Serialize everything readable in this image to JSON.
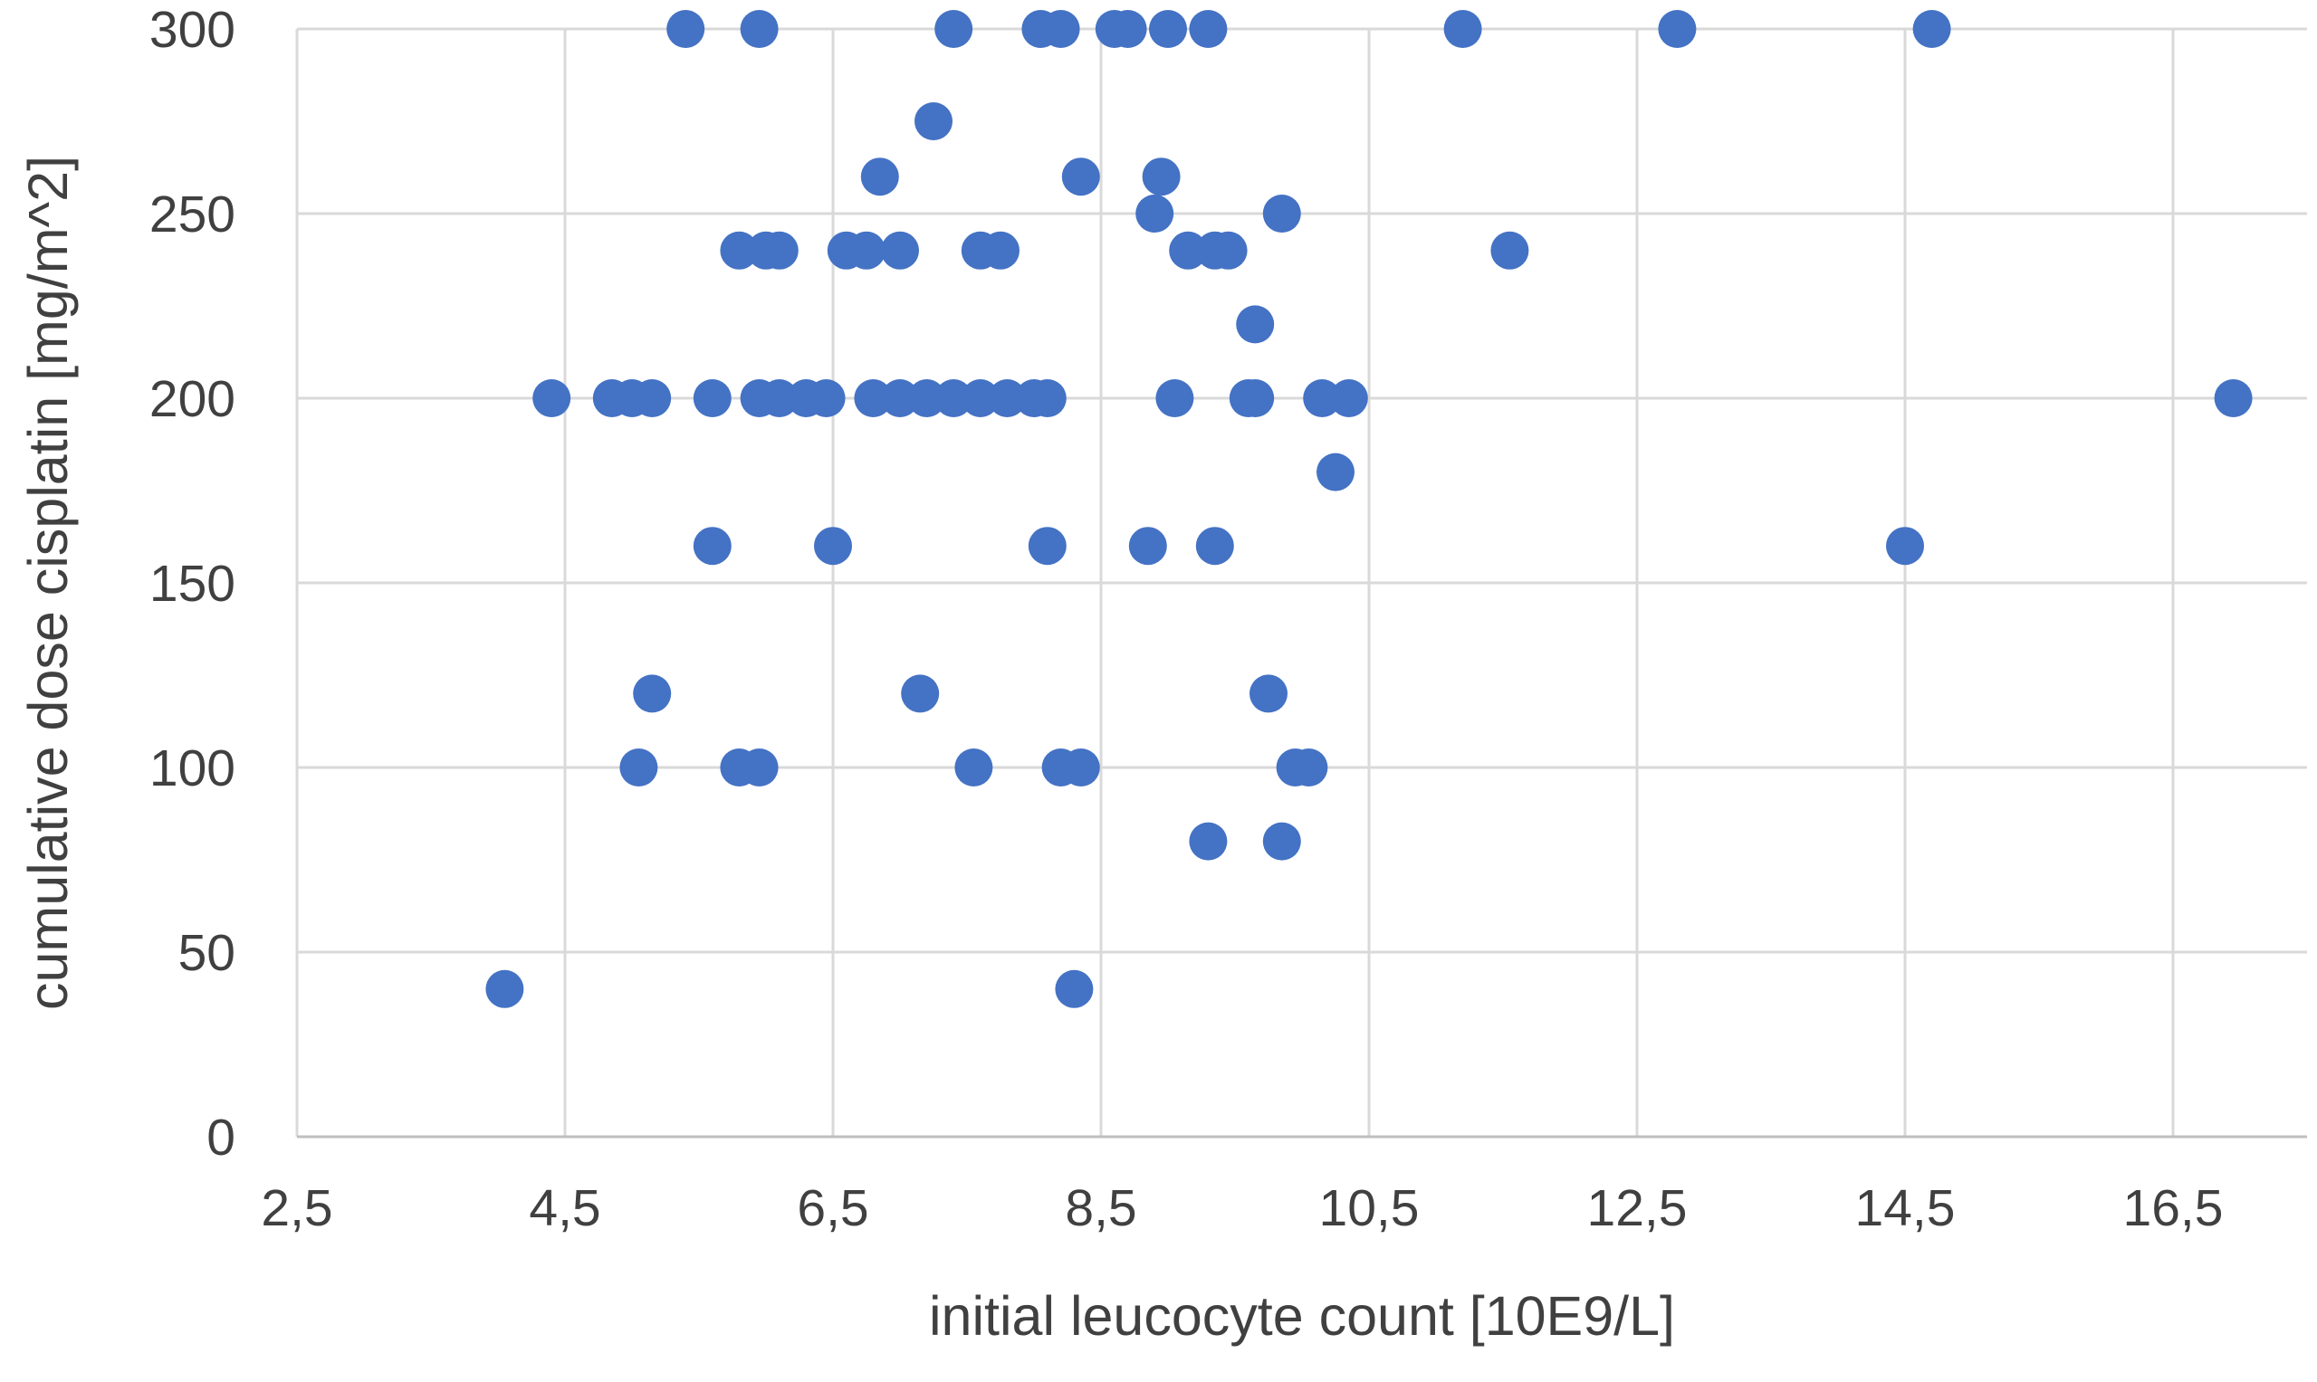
{
  "chart_data": {
    "type": "scatter",
    "title": "",
    "xlabel": "initial leucocyte count [10E9/L]",
    "ylabel": "cumulative dose cisplatin [mg/m^2]",
    "xlim": [
      2.5,
      17.5
    ],
    "ylim": [
      0,
      300
    ],
    "x_ticks": [
      2.5,
      4.5,
      6.5,
      8.5,
      10.5,
      12.5,
      14.5,
      16.5
    ],
    "x_tick_labels": [
      "2,5",
      "4,5",
      "6,5",
      "8,5",
      "10,5",
      "12,5",
      "14,5",
      "16,5"
    ],
    "y_ticks": [
      0,
      50,
      100,
      150,
      200,
      250,
      300
    ],
    "y_tick_labels": [
      "0",
      "50",
      "100",
      "150",
      "200",
      "250",
      "300"
    ],
    "grid": true,
    "legend": "none",
    "marker_color": "#4472C4",
    "series": [
      {
        "points": [
          [
            5.4,
            300
          ],
          [
            5.95,
            300
          ],
          [
            7.4,
            300
          ],
          [
            8.05,
            300
          ],
          [
            8.2,
            300
          ],
          [
            8.6,
            300
          ],
          [
            8.7,
            300
          ],
          [
            9.0,
            300
          ],
          [
            9.3,
            300
          ],
          [
            11.2,
            300
          ],
          [
            12.8,
            300
          ],
          [
            14.7,
            300
          ],
          [
            7.25,
            275
          ],
          [
            6.85,
            260
          ],
          [
            8.35,
            260
          ],
          [
            8.95,
            260
          ],
          [
            8.9,
            250
          ],
          [
            9.85,
            250
          ],
          [
            5.8,
            240
          ],
          [
            6.0,
            240
          ],
          [
            6.1,
            240
          ],
          [
            6.6,
            240
          ],
          [
            6.75,
            240
          ],
          [
            7.0,
            240
          ],
          [
            7.6,
            240
          ],
          [
            7.75,
            240
          ],
          [
            9.15,
            240
          ],
          [
            9.35,
            240
          ],
          [
            9.45,
            240
          ],
          [
            11.55,
            240
          ],
          [
            9.65,
            220
          ],
          [
            4.4,
            200
          ],
          [
            4.85,
            200
          ],
          [
            5.0,
            200
          ],
          [
            5.15,
            200
          ],
          [
            5.6,
            200
          ],
          [
            5.95,
            200
          ],
          [
            6.1,
            200
          ],
          [
            6.3,
            200
          ],
          [
            6.45,
            200
          ],
          [
            6.8,
            200
          ],
          [
            7.0,
            200
          ],
          [
            7.2,
            200
          ],
          [
            7.4,
            200
          ],
          [
            7.6,
            200
          ],
          [
            7.8,
            200
          ],
          [
            8.0,
            200
          ],
          [
            8.1,
            200
          ],
          [
            9.05,
            200
          ],
          [
            9.6,
            200
          ],
          [
            9.65,
            200
          ],
          [
            10.15,
            200
          ],
          [
            10.35,
            200
          ],
          [
            16.95,
            200
          ],
          [
            10.25,
            180
          ],
          [
            5.6,
            160
          ],
          [
            6.5,
            160
          ],
          [
            8.1,
            160
          ],
          [
            8.85,
            160
          ],
          [
            9.35,
            160
          ],
          [
            14.5,
            160
          ],
          [
            5.15,
            120
          ],
          [
            7.15,
            120
          ],
          [
            9.75,
            120
          ],
          [
            5.05,
            100
          ],
          [
            5.8,
            100
          ],
          [
            5.95,
            100
          ],
          [
            7.55,
            100
          ],
          [
            8.2,
            100
          ],
          [
            8.35,
            100
          ],
          [
            9.95,
            100
          ],
          [
            10.05,
            100
          ],
          [
            9.3,
            80
          ],
          [
            9.85,
            80
          ],
          [
            4.05,
            40
          ],
          [
            8.3,
            40
          ]
        ]
      }
    ]
  }
}
